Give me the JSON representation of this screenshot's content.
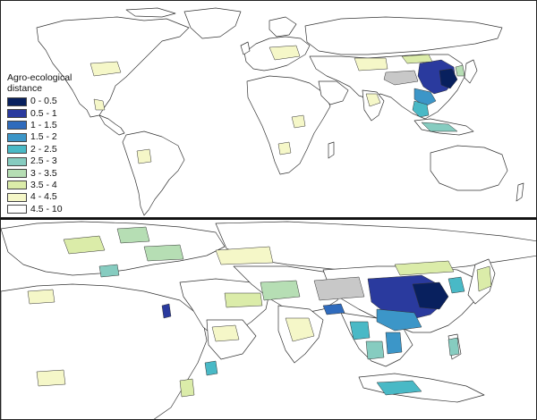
{
  "legend": {
    "title_line1": "Agro-ecological",
    "title_line2": "distance",
    "classes": [
      {
        "label": "0 - 0.5",
        "color": "#08205e"
      },
      {
        "label": "0.5 - 1",
        "color": "#2a3a9e"
      },
      {
        "label": "1 - 1.5",
        "color": "#2f6bbd"
      },
      {
        "label": "1.5 - 2",
        "color": "#3c96c8"
      },
      {
        "label": "2 - 2.5",
        "color": "#49b9c6"
      },
      {
        "label": "2.5 - 3",
        "color": "#86ccc0"
      },
      {
        "label": "3 - 3.5",
        "color": "#b6deb4"
      },
      {
        "label": "3.5 - 4",
        "color": "#dbeca9"
      },
      {
        "label": "4 - 4.5",
        "color": "#f5f7c8"
      },
      {
        "label": "4.5 - 10",
        "color": "#ffffff"
      }
    ]
  },
  "colors": {
    "land_outline": "#333333",
    "no_data": "#c8c8c8",
    "border": "#111111"
  },
  "maps": {
    "top": "world",
    "bottom": "afro-eurasia-detail"
  }
}
